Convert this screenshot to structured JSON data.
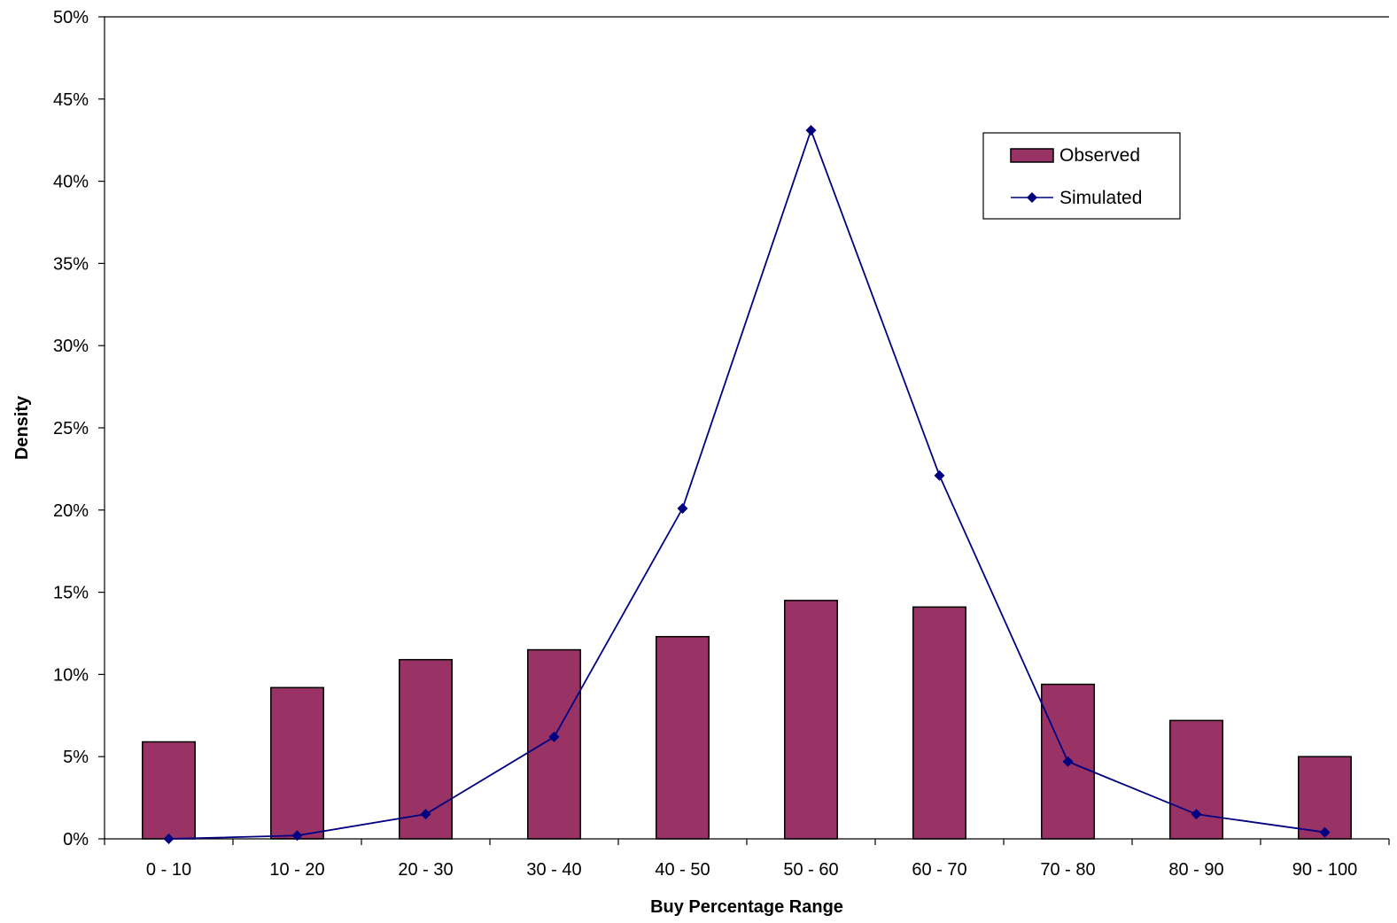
{
  "chart_data": {
    "type": "bar",
    "categories": [
      "0 - 10",
      "10 - 20",
      "20 - 30",
      "30 - 40",
      "40 - 50",
      "50 - 60",
      "60 - 70",
      "70 - 80",
      "80 - 90",
      "90 - 100"
    ],
    "series": [
      {
        "name": "Observed",
        "type": "bar",
        "color": "#993366",
        "values": [
          5.9,
          9.2,
          10.9,
          11.5,
          12.3,
          14.5,
          14.1,
          9.4,
          7.2,
          5.0
        ]
      },
      {
        "name": "Simulated",
        "type": "line",
        "color": "#000080",
        "values": [
          0.0,
          0.2,
          1.5,
          6.2,
          20.1,
          43.1,
          22.1,
          4.7,
          1.5,
          0.4
        ]
      }
    ],
    "xlabel": "Buy Percentage Range",
    "ylabel": "Density",
    "ylim": [
      0,
      50
    ],
    "yticks": [
      "0%",
      "5%",
      "10%",
      "15%",
      "20%",
      "25%",
      "30%",
      "35%",
      "40%",
      "45%",
      "50%"
    ],
    "grid": false,
    "legend_position": "top-right"
  }
}
